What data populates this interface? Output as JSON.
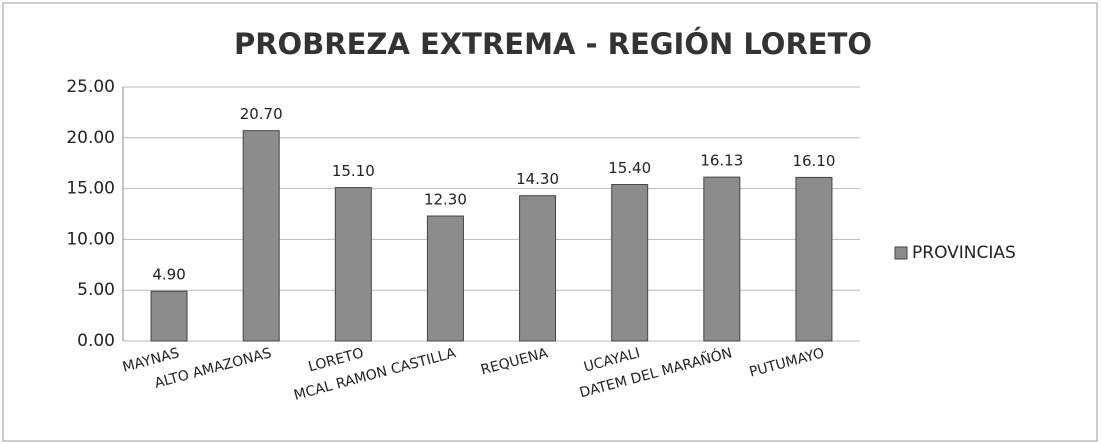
{
  "chart_data": {
    "type": "bar",
    "title": "PROBREZA EXTREMA - REGIÓN LORETO",
    "categories": [
      "MAYNAS",
      "ALTO AMAZONAS",
      "LORETO",
      "MCAL RAMON CASTILLA",
      "REQUENA",
      "UCAYALI",
      "DATEM DEL MARAÑÓN",
      "PUTUMAYO"
    ],
    "series": [
      {
        "name": "PROVINCIAS",
        "color": "#8c8c8c",
        "values": [
          4.9,
          20.7,
          15.1,
          12.3,
          14.3,
          15.4,
          16.13,
          16.1
        ],
        "value_labels": [
          "4.90",
          "20.70",
          "15.10",
          "12.30",
          "14.30",
          "15.40",
          "16.13",
          "16.10"
        ]
      }
    ],
    "ylim": [
      0,
      25
    ],
    "yticks": [
      {
        "value": 0,
        "label": "0.00"
      },
      {
        "value": 5,
        "label": "5.00"
      },
      {
        "value": 10,
        "label": "10.00"
      },
      {
        "value": 15,
        "label": "15.00"
      },
      {
        "value": 20,
        "label": "20.00"
      },
      {
        "value": 25,
        "label": "25.00"
      }
    ],
    "grid": true,
    "legend": "right"
  }
}
